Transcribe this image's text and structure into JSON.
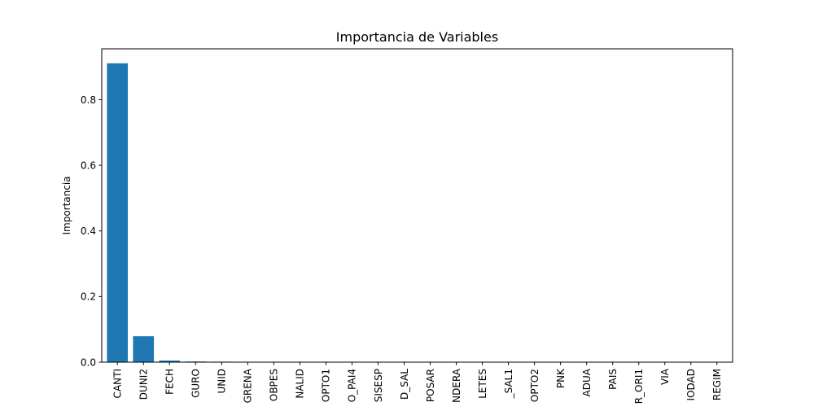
{
  "chart_data": {
    "type": "bar",
    "title": "Importancia de Variables",
    "xlabel": "",
    "ylabel": "Importancia",
    "ylim": [
      0,
      0.955
    ],
    "yticks": [
      0.0,
      0.2,
      0.4,
      0.6,
      0.8
    ],
    "ytick_labels": [
      "0.0",
      "0.2",
      "0.4",
      "0.6",
      "0.8"
    ],
    "grid": false,
    "legend": "none",
    "bar_color": "#1f77b4",
    "categories": [
      "CANTI",
      "DUNI2",
      "FECH",
      "GURO",
      "UNID",
      "GRENA",
      "OBPES",
      "NALID",
      "OPTO1",
      "O_PAI4",
      "SISESP",
      "D_SAL",
      "POSAR",
      "NDERA",
      "LETES",
      "_SAL1",
      "OPTO2",
      "PNK",
      "ADUA",
      "PAIS",
      "R_ORI1",
      "VIA",
      "IODAD",
      "REGIM"
    ],
    "values": [
      0.911,
      0.079,
      0.005,
      0.002,
      0.0015,
      0.0006,
      0.0005,
      0.0004,
      0.0003,
      0.0003,
      0.0002,
      0.0002,
      0.0002,
      0.0001,
      0.0001,
      0.0001,
      0.0001,
      0.0001,
      0.0001,
      0.0001,
      0.0001,
      0.0,
      0.0,
      0.0
    ]
  }
}
